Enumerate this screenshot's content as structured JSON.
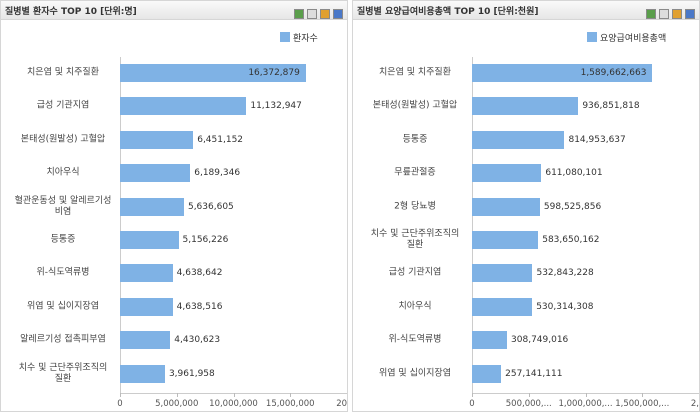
{
  "chart_data": [
    {
      "type": "bar",
      "orientation": "horizontal",
      "title": "질병별 환자수 TOP 10 [단위:명]",
      "categories": [
        "치은염 및 치주질환",
        "급성 기관지염",
        "본태성(원발성) 고혈압",
        "치아우식",
        "혈관운동성 및 알레르기성 비염",
        "등통증",
        "위-식도역류병",
        "위염 및 십이지장염",
        "알레르기성 접촉피부염",
        "치수 및 근단주위조직의 질환"
      ],
      "series": [
        {
          "name": "환자수",
          "color": "#7fb2e5",
          "values": [
            16372879,
            11132947,
            6451152,
            6189346,
            5636605,
            5156226,
            4638642,
            4638516,
            4430623,
            3961958
          ],
          "value_labels": [
            "16,372,879",
            "11,132,947",
            "6,451,152",
            "6,189,346",
            "5,636,605",
            "5,156,226",
            "4,638,642",
            "4,638,516",
            "4,430,623",
            "3,961,958"
          ]
        }
      ],
      "xlim": [
        0,
        20000000
      ],
      "xticks": [
        0,
        {
          "value": 5000000,
          "label": "5,000,000"
        },
        {
          "value": 10000000,
          "label": "10,000,000"
        },
        {
          "value": 15000000,
          "label": "15,000,000"
        },
        {
          "value": 20000000,
          "label": "20,..."
        }
      ]
    },
    {
      "type": "bar",
      "orientation": "horizontal",
      "title": "질병별 요양급여비용총액 TOP 10 [단위:천원]",
      "categories": [
        "치은염 및 치주질환",
        "본태성(원발성) 고혈압",
        "등통증",
        "무릎관절증",
        "2형 당뇨병",
        "치수 및 근단주위조직의 질환",
        "급성 기관지염",
        "치아우식",
        "위-식도역류병",
        "위염 및 십이지장염"
      ],
      "series": [
        {
          "name": "요양급여비용총액",
          "color": "#7fb2e5",
          "values": [
            1589662663,
            936851818,
            814953637,
            611080101,
            598525856,
            583650162,
            532843228,
            530314308,
            308749016,
            257141111
          ],
          "value_labels": [
            "1,589,662,663",
            "936,851,818",
            "814,953,637",
            "611,080,101",
            "598,525,856",
            "583,650,162",
            "532,843,228",
            "530,314,308",
            "308,749,016",
            "257,141,111"
          ]
        }
      ],
      "xlim": [
        0,
        2000000000
      ],
      "xticks": [
        0,
        {
          "value": 500000000,
          "label": "500,000,..."
        },
        {
          "value": 1000000000,
          "label": "1,000,000,..."
        },
        {
          "value": 1500000000,
          "label": "1,500,000,..."
        },
        {
          "value": 2000000000,
          "label": "2,..."
        }
      ]
    }
  ]
}
